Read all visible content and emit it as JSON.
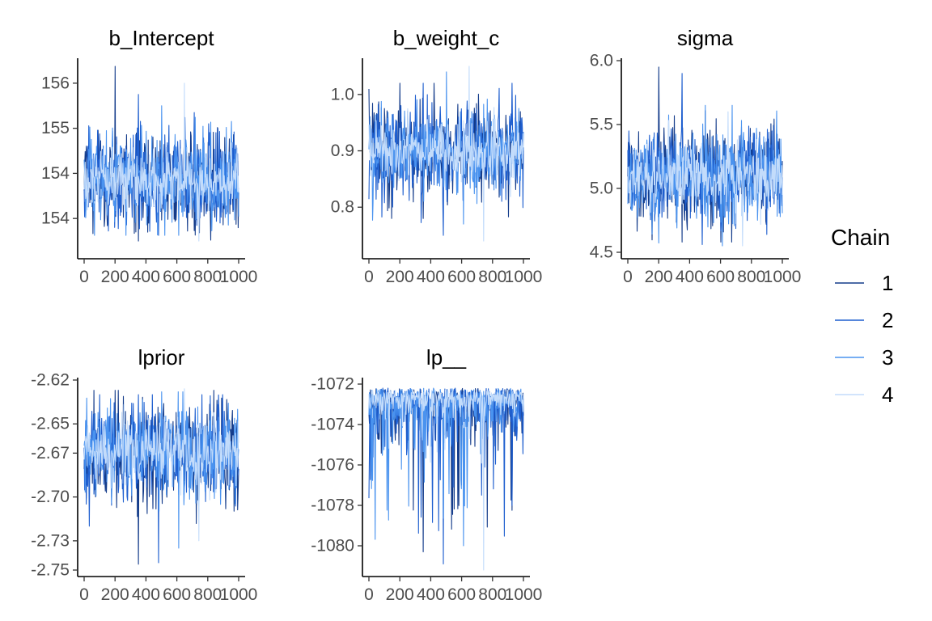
{
  "legend": {
    "title": "Chain",
    "placement": "right",
    "entries": [
      {
        "label": "1",
        "color": "#133b8a"
      },
      {
        "label": "2",
        "color": "#1f5fcf"
      },
      {
        "label": "3",
        "color": "#4a93ef"
      },
      {
        "label": "4",
        "color": "#c3dcfb"
      }
    ]
  },
  "chart_data": [
    {
      "type": "line",
      "title": "b_Intercept",
      "x_range": [
        0,
        1000
      ],
      "x_ticks": [
        0,
        200,
        400,
        600,
        800,
        1000
      ],
      "x_tick_labels": [
        "0",
        "200",
        "400",
        "600",
        "800",
        "1000"
      ],
      "y_range": [
        153.0,
        156.4
      ],
      "y_ticks": [
        153.6,
        154.4,
        155.2,
        156.0
      ],
      "y_tick_labels": [
        "154",
        "154",
        "155",
        "156"
      ],
      "series": [
        {
          "name": "1",
          "center": 154.3,
          "spread": 0.42,
          "outlier_max": 156.3,
          "outlier_min": 153.2
        },
        {
          "name": "2",
          "center": 154.3,
          "spread": 0.42,
          "outlier_max": 155.8,
          "outlier_min": 153.3
        },
        {
          "name": "3",
          "center": 154.3,
          "spread": 0.4,
          "outlier_max": 155.6,
          "outlier_min": 153.3
        },
        {
          "name": "4",
          "center": 154.3,
          "spread": 0.25,
          "outlier_max": 156.0,
          "outlier_min": 153.2
        }
      ],
      "grid": false
    },
    {
      "type": "line",
      "title": "b_weight_c",
      "x_range": [
        0,
        1000
      ],
      "x_ticks": [
        0,
        200,
        400,
        600,
        800,
        1000
      ],
      "x_tick_labels": [
        "0",
        "200",
        "400",
        "600",
        "800",
        "1000"
      ],
      "y_range": [
        0.72,
        1.06
      ],
      "y_ticks": [
        0.8,
        0.9,
        1.0
      ],
      "y_tick_labels": [
        "0.8",
        "0.9",
        "1.0"
      ],
      "series": [
        {
          "name": "1",
          "center": 0.9,
          "spread": 0.042,
          "outlier_max": 1.02,
          "outlier_min": 0.78
        },
        {
          "name": "2",
          "center": 0.9,
          "spread": 0.042,
          "outlier_max": 1.02,
          "outlier_min": 0.75
        },
        {
          "name": "3",
          "center": 0.9,
          "spread": 0.04,
          "outlier_max": 1.04,
          "outlier_min": 0.77
        },
        {
          "name": "4",
          "center": 0.9,
          "spread": 0.026,
          "outlier_max": 1.05,
          "outlier_min": 0.74
        }
      ],
      "grid": false
    },
    {
      "type": "line",
      "title": "sigma",
      "x_range": [
        0,
        1000
      ],
      "x_ticks": [
        0,
        200,
        400,
        600,
        800,
        1000
      ],
      "x_tick_labels": [
        "0",
        "200",
        "400",
        "600",
        "800",
        "1000"
      ],
      "y_range": [
        4.5,
        6.0
      ],
      "y_ticks": [
        4.5,
        5.0,
        5.5,
        6.0
      ],
      "y_tick_labels": [
        "4.5",
        "5.0",
        "5.5",
        "6.0"
      ],
      "series": [
        {
          "name": "1",
          "center": 5.1,
          "spread": 0.19,
          "outlier_max": 5.95,
          "outlier_min": 4.58
        },
        {
          "name": "2",
          "center": 5.1,
          "spread": 0.19,
          "outlier_max": 5.9,
          "outlier_min": 4.56
        },
        {
          "name": "3",
          "center": 5.1,
          "spread": 0.18,
          "outlier_max": 5.65,
          "outlier_min": 4.55
        },
        {
          "name": "4",
          "center": 5.1,
          "spread": 0.12,
          "outlier_max": 5.6,
          "outlier_min": 4.55
        }
      ],
      "grid": false
    },
    {
      "type": "line",
      "title": "lprior",
      "x_range": [
        0,
        1000
      ],
      "x_ticks": [
        0,
        200,
        400,
        600,
        800,
        1000
      ],
      "x_tick_labels": [
        "0",
        "200",
        "400",
        "600",
        "800",
        "1000"
      ],
      "y_range": [
        -2.75,
        -2.62
      ],
      "y_ticks": [
        -2.75,
        -2.73,
        -2.7,
        -2.67,
        -2.65,
        -2.62
      ],
      "y_tick_labels": [
        "-2.75",
        "-2.73",
        "-2.70",
        "-2.67",
        "-2.65",
        "-2.62"
      ],
      "series": [
        {
          "name": "1",
          "center": -2.67,
          "spread": 0.017,
          "outlier_max": -2.627,
          "outlier_min": -2.746
        },
        {
          "name": "2",
          "center": -2.67,
          "spread": 0.017,
          "outlier_max": -2.63,
          "outlier_min": -2.745
        },
        {
          "name": "3",
          "center": -2.67,
          "spread": 0.016,
          "outlier_max": -2.628,
          "outlier_min": -2.735
        },
        {
          "name": "4",
          "center": -2.668,
          "spread": 0.011,
          "outlier_max": -2.626,
          "outlier_min": -2.73
        }
      ],
      "grid": false
    },
    {
      "type": "line",
      "title": "lp__",
      "x_range": [
        0,
        1000
      ],
      "x_ticks": [
        0,
        200,
        400,
        600,
        800,
        1000
      ],
      "x_tick_labels": [
        "0",
        "200",
        "400",
        "600",
        "800",
        "1000"
      ],
      "y_range": [
        -1081.2,
        -1071.8
      ],
      "y_ticks": [
        -1080,
        -1078,
        -1076,
        -1074,
        -1072
      ],
      "y_tick_labels": [
        "-1080",
        "-1078",
        "-1076",
        "-1074",
        "-1072"
      ],
      "series": [
        {
          "name": "1",
          "upper": -1072.2,
          "typical_drop": 2.0,
          "outlier_min": -1080.3
        },
        {
          "name": "2",
          "upper": -1072.2,
          "typical_drop": 2.0,
          "outlier_min": -1080.9
        },
        {
          "name": "3",
          "upper": -1072.2,
          "typical_drop": 1.9,
          "outlier_min": -1080.0
        },
        {
          "name": "4",
          "upper": -1072.3,
          "typical_drop": 1.0,
          "outlier_min": -1081.2
        }
      ],
      "grid": false
    }
  ]
}
